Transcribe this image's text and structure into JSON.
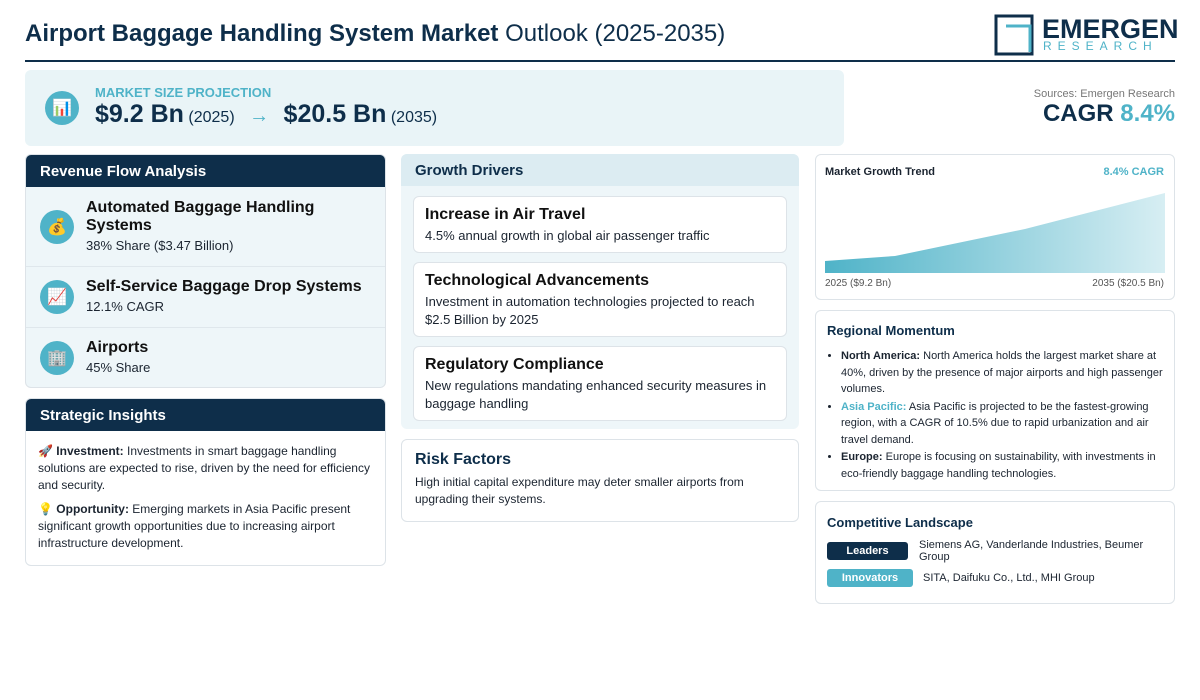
{
  "header": {
    "title_bold": "Airport Baggage Handling System Market",
    "title_rest": "Outlook (2025-2035)",
    "logo": {
      "name": "EMERGEN",
      "sub": "RESEARCH"
    }
  },
  "projection": {
    "icon": "📊",
    "label": "MARKET SIZE PROJECTION",
    "start_value": "$9.2 Bn",
    "start_year": "(2025)",
    "arrow": "→",
    "end_value": "$20.5 Bn",
    "end_year": "(2035)"
  },
  "sources": "Sources: Emergen Research",
  "cagr": {
    "label": "CAGR",
    "value": "8.4%"
  },
  "revenue": {
    "title": "Revenue Flow Analysis",
    "items": [
      {
        "icon": "💰",
        "name": "Automated Baggage Handling Systems",
        "detail": "38% Share ($3.47 Billion)"
      },
      {
        "icon": "📈",
        "name": "Self-Service Baggage Drop Systems",
        "detail": "12.1% CAGR"
      },
      {
        "icon": "🏢",
        "name": "Airports",
        "detail": "45% Share"
      }
    ]
  },
  "insights": {
    "title": "Strategic Insights",
    "items": [
      {
        "icon": "🚀",
        "label": "Investment:",
        "text": "Investments in smart baggage handling solutions are expected to rise, driven by the need for efficiency and security."
      },
      {
        "icon": "💡",
        "label": "Opportunity:",
        "text": "Emerging markets in Asia Pacific present significant growth opportunities due to increasing airport infrastructure development."
      }
    ]
  },
  "drivers": {
    "title": "Growth Drivers",
    "items": [
      {
        "title": "Increase in Air Travel",
        "text": "4.5% annual growth in global air passenger traffic"
      },
      {
        "title": "Technological Advancements",
        "text": "Investment in automation technologies projected to reach $2.5 Billion by 2025"
      },
      {
        "title": "Regulatory Compliance",
        "text": "New regulations mandating enhanced security measures in baggage handling"
      }
    ]
  },
  "risks": {
    "title": "Risk Factors",
    "text": "High initial capital expenditure may deter smaller airports from upgrading their systems."
  },
  "trend": {
    "title": "Market Growth Trend",
    "badge": "8.4% CAGR",
    "start_label": "2025 ($9.2 Bn)",
    "end_label": "2035 ($20.5 Bn)"
  },
  "regional": {
    "title": "Regional Momentum",
    "items": [
      {
        "label": "North America:",
        "text": "North America holds the largest market share at 40%, driven by the presence of major airports and high passenger volumes."
      },
      {
        "label": "Asia Pacific:",
        "text": "Asia Pacific is projected to be the fastest-growing region, with a CAGR of 10.5% due to rapid urbanization and air travel demand."
      },
      {
        "label": "Europe:",
        "text": "Europe is focusing on sustainability, with investments in eco-friendly baggage handling technologies."
      }
    ]
  },
  "competitive": {
    "title": "Competitive Landscape",
    "rows": [
      {
        "tag": "Leaders",
        "text": "Siemens AG, Vanderlande Industries, Beumer Group"
      },
      {
        "tag": "Innovators",
        "text": "SITA, Daifuku Co., Ltd., MHI Group"
      }
    ]
  }
}
